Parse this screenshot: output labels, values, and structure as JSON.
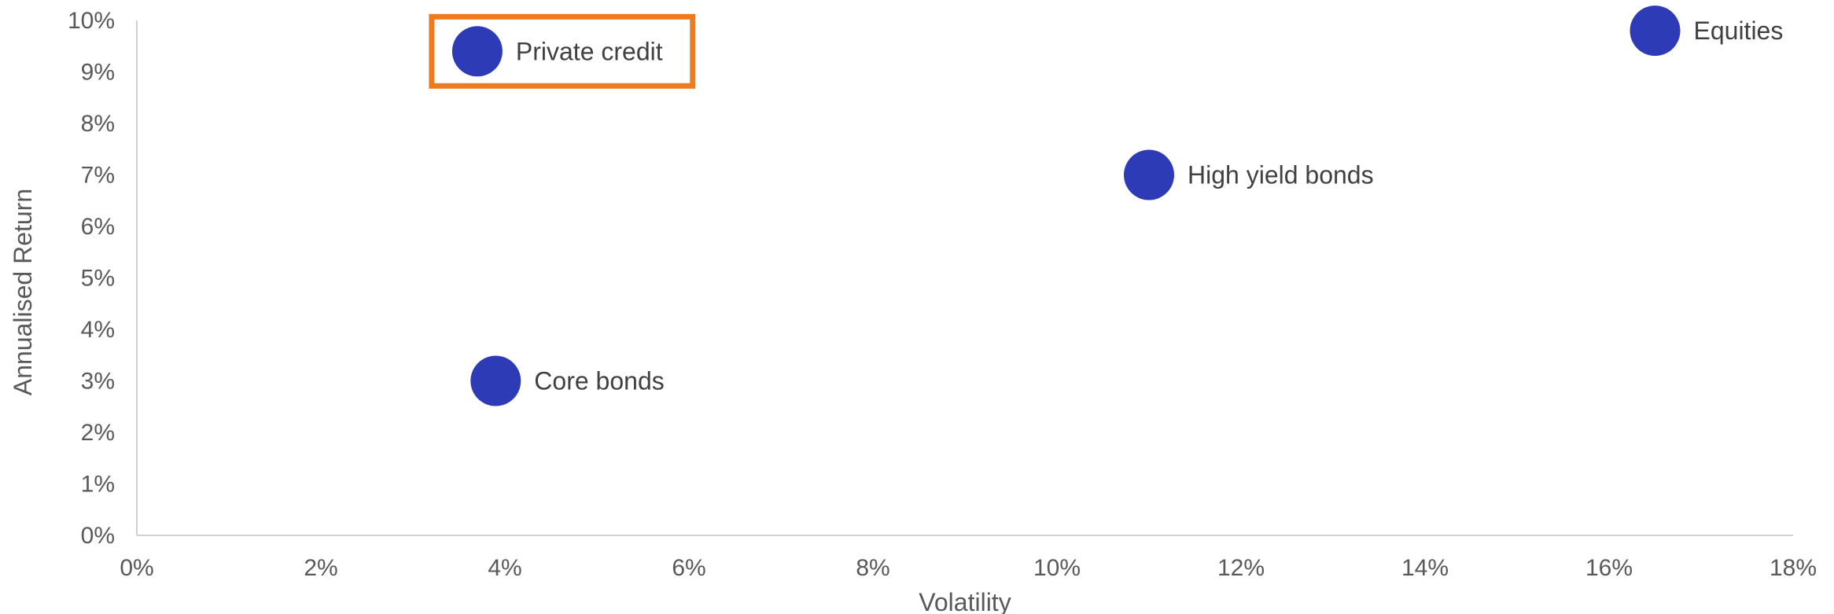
{
  "chart_data": {
    "type": "scatter",
    "xlabel": "Volatility",
    "ylabel": "Annualised Return",
    "xlim": [
      0,
      18
    ],
    "ylim": [
      0,
      10
    ],
    "x_ticks": [
      "0%",
      "2%",
      "4%",
      "6%",
      "8%",
      "10%",
      "12%",
      "14%",
      "16%",
      "18%"
    ],
    "y_ticks": [
      "0%",
      "1%",
      "2%",
      "3%",
      "4%",
      "5%",
      "6%",
      "7%",
      "8%",
      "9%",
      "10%"
    ],
    "grid": false,
    "legend": "none",
    "marker_color": "#2e3bb6",
    "highlight_color": "#f07b1e",
    "points": [
      {
        "label": "Private credit",
        "x": 3.7,
        "y": 9.4,
        "highlighted": true
      },
      {
        "label": "Core bonds",
        "x": 3.9,
        "y": 3.0,
        "highlighted": false
      },
      {
        "label": "High yield bonds",
        "x": 11.0,
        "y": 7.0,
        "highlighted": false
      },
      {
        "label": "Equities",
        "x": 16.5,
        "y": 9.8,
        "highlighted": false
      }
    ]
  }
}
